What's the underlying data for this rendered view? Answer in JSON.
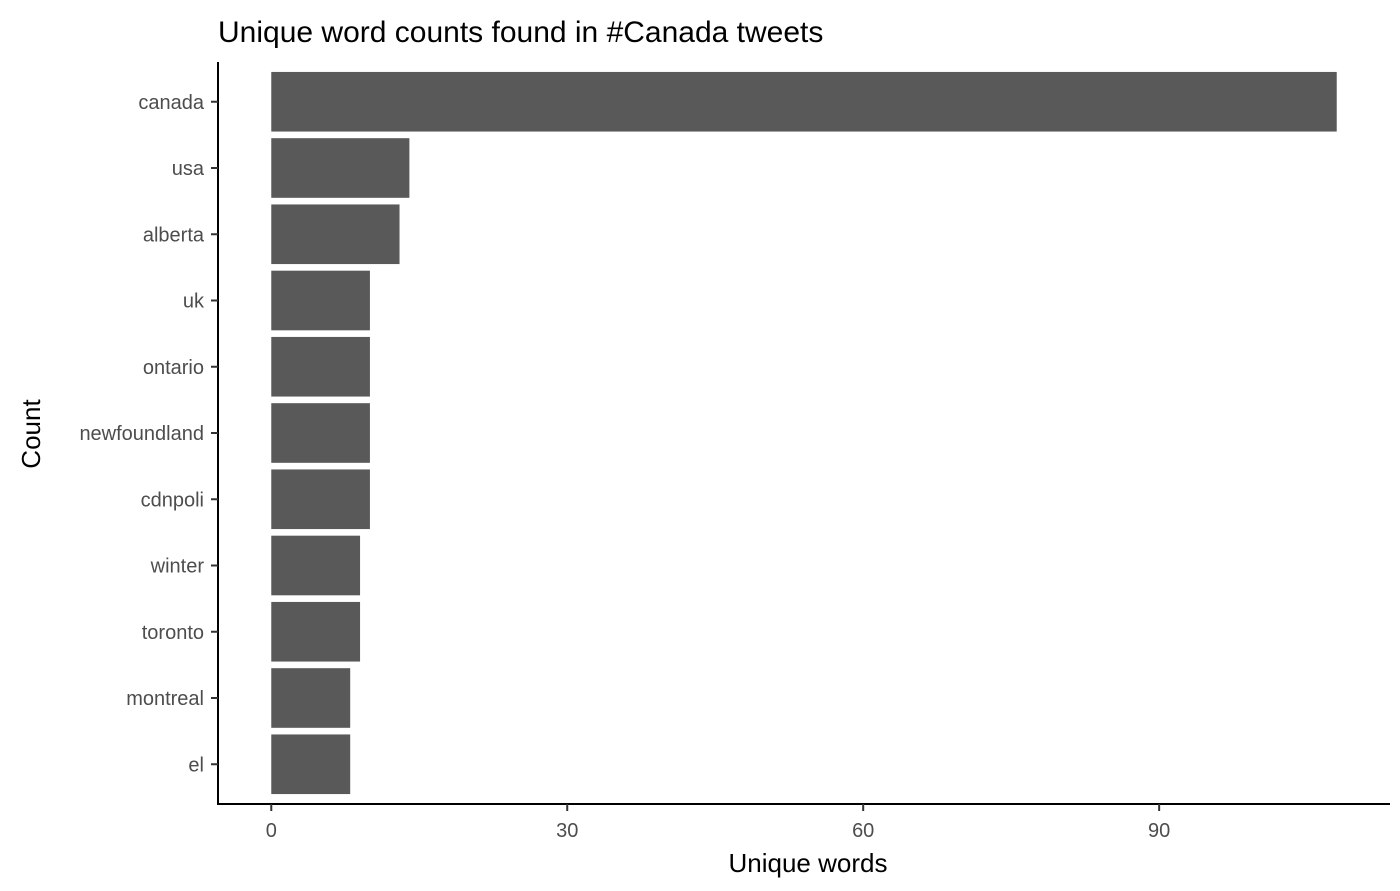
{
  "chart_data": {
    "type": "bar",
    "orientation": "horizontal",
    "title": "Unique word counts found in #Canada tweets",
    "xlabel": "Unique words",
    "ylabel": "Count",
    "categories": [
      "canada",
      "usa",
      "alberta",
      "uk",
      "ontario",
      "newfoundland",
      "cdnpoli",
      "winter",
      "toronto",
      "montreal",
      "el"
    ],
    "values": [
      108,
      14,
      13,
      10,
      10,
      10,
      10,
      9,
      9,
      8,
      8
    ],
    "xlim": [
      -5.4,
      113.4
    ],
    "xticks": [
      0,
      30,
      60,
      90
    ],
    "xtick_labels": [
      "0",
      "30",
      "60",
      "90"
    ],
    "grid": false,
    "bar_color": "#595959"
  }
}
